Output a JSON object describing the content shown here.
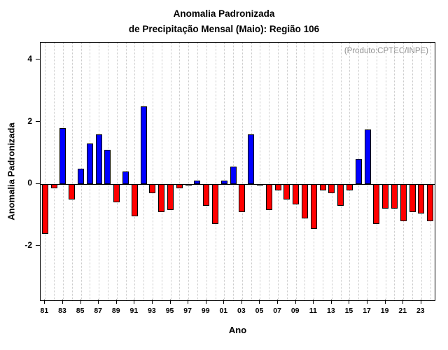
{
  "chart_data": {
    "type": "bar",
    "title_line1": "Anomalia Padronizada",
    "title_line2": "de Precipitação Mensal (Maio): Região 106",
    "xlabel": "Ano",
    "ylabel": "Anomalia Padronizada",
    "annotation": "(Produto:CPTEC/INPE)",
    "ylim": [
      -3.75,
      4.55
    ],
    "yticks": [
      -2,
      0,
      2,
      4
    ],
    "grid": "vertical-dotted",
    "legend_position": "none",
    "positive_color": "#0000ff",
    "negative_color": "#ff0000",
    "bar_border_color": "#000000",
    "years": [
      1981,
      1982,
      1983,
      1984,
      1985,
      1986,
      1987,
      1988,
      1989,
      1990,
      1991,
      1992,
      1993,
      1994,
      1995,
      1996,
      1997,
      1998,
      1999,
      2000,
      2001,
      2002,
      2003,
      2004,
      2005,
      2006,
      2007,
      2008,
      2009,
      2010,
      2011,
      2012,
      2013,
      2014,
      2015,
      2016,
      2017,
      2018,
      2019,
      2020,
      2021,
      2022,
      2023,
      2024
    ],
    "values": [
      -1.6,
      -0.15,
      1.8,
      -0.5,
      0.5,
      1.3,
      1.6,
      1.1,
      -0.6,
      0.4,
      -1.05,
      2.5,
      -0.3,
      -0.9,
      -0.85,
      -0.15,
      -0.05,
      0.1,
      -0.7,
      -1.3,
      0.1,
      0.55,
      -0.9,
      1.6,
      -0.05,
      -0.85,
      -0.2,
      -0.5,
      -0.65,
      -1.1,
      -1.45,
      -0.2,
      -0.3,
      -0.7,
      -0.2,
      0.8,
      1.75,
      -1.3,
      -0.8,
      -0.8,
      -1.2,
      -0.9,
      -0.95,
      -1.2
    ],
    "xtick_labels": [
      "81",
      "83",
      "85",
      "87",
      "89",
      "91",
      "93",
      "95",
      "97",
      "99",
      "01",
      "03",
      "05",
      "07",
      "09",
      "11",
      "13",
      "15",
      "17",
      "19",
      "21",
      "23"
    ],
    "xtick_step": 2
  }
}
